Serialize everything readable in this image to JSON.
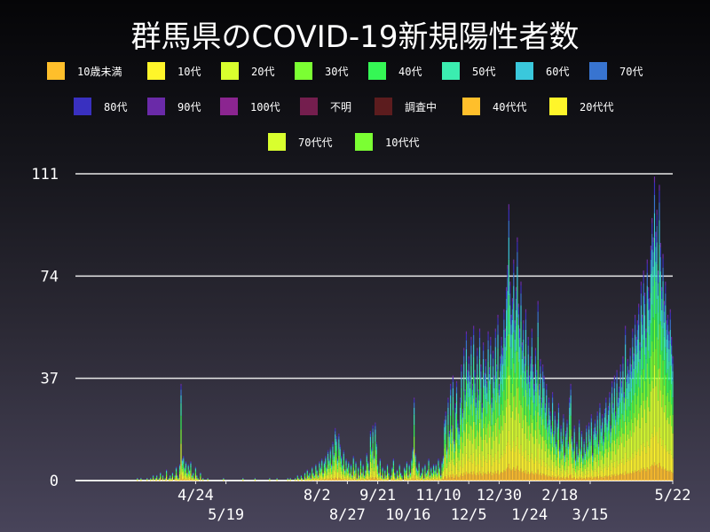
{
  "title": "群馬県のCOVID-19新規陽性者数",
  "legend": [
    {
      "label": "10歳未満",
      "color": "#FFBF2B"
    },
    {
      "label": "10代",
      "color": "#FFF52A"
    },
    {
      "label": "20代",
      "color": "#D9FF2E"
    },
    {
      "label": "30代",
      "color": "#7BFF33"
    },
    {
      "label": "40代",
      "color": "#35F755"
    },
    {
      "label": "50代",
      "color": "#3BEDB0"
    },
    {
      "label": "60代",
      "color": "#3AC8DC"
    },
    {
      "label": "70代",
      "color": "#3874D0"
    },
    {
      "label": "80代",
      "color": "#3930C0"
    },
    {
      "label": "90代",
      "color": "#6A2AA8"
    },
    {
      "label": "100代",
      "color": "#8B2590"
    },
    {
      "label": "不明",
      "color": "#741E4E"
    },
    {
      "label": "調査中",
      "color": "#5C1C1E"
    },
    {
      "label": "40代代",
      "color": "#FFBF2B"
    },
    {
      "label": "20代代",
      "color": "#FFF52A"
    },
    {
      "label": "70代代",
      "color": "#D9FF2E"
    },
    {
      "label": "10代代",
      "color": "#7BFF33"
    }
  ],
  "chart_data": {
    "type": "bar",
    "stacked": true,
    "title": "群馬県のCOVID-19新規陽性者数",
    "xlabel": "",
    "ylabel": "",
    "x_start": "2020-03-07",
    "xlim": [
      "2020-01-16",
      "2021-05-22"
    ],
    "ylim": [
      0,
      111
    ],
    "yticks": [
      0,
      37,
      74,
      111
    ],
    "xticks": [
      "4/24",
      "5/19",
      "8/2",
      "8/27",
      "9/21",
      "10/16",
      "11/10",
      "12/5",
      "12/30",
      "1/24",
      "2/18",
      "3/15",
      "5/22"
    ],
    "xtick_dates": [
      "2020-04-24",
      "2020-05-19",
      "2020-08-02",
      "2020-08-27",
      "2020-09-21",
      "2020-10-16",
      "2020-11-10",
      "2020-12-05",
      "2020-12-30",
      "2021-01-24",
      "2021-02-18",
      "2021-03-15",
      "2021-05-22"
    ],
    "grid": "horizontal",
    "legend_position": "top",
    "daily_totals": [
      1,
      0,
      0,
      1,
      0,
      0,
      0,
      0,
      1,
      0,
      0,
      1,
      0,
      2,
      0,
      1,
      2,
      0,
      1,
      3,
      0,
      2,
      0,
      1,
      4,
      0,
      1,
      2,
      1,
      3,
      0,
      2,
      5,
      2,
      1,
      6,
      35,
      8,
      9,
      5,
      7,
      3,
      6,
      4,
      7,
      2,
      3,
      1,
      5,
      2,
      1,
      0,
      3,
      0,
      1,
      0,
      0,
      0,
      1,
      0,
      0,
      0,
      0,
      0,
      0,
      0,
      0,
      0,
      0,
      0,
      0,
      1,
      0,
      0,
      0,
      0,
      0,
      0,
      0,
      0,
      0,
      0,
      0,
      0,
      0,
      0,
      0,
      1,
      0,
      0,
      0,
      0,
      0,
      0,
      0,
      0,
      0,
      1,
      0,
      0,
      0,
      0,
      0,
      0,
      0,
      0,
      0,
      0,
      0,
      1,
      0,
      0,
      0,
      0,
      0,
      1,
      0,
      0,
      0,
      0,
      0,
      0,
      0,
      0,
      1,
      0,
      1,
      0,
      0,
      0,
      1,
      0,
      2,
      1,
      0,
      2,
      1,
      0,
      3,
      1,
      4,
      2,
      3,
      1,
      5,
      3,
      2,
      6,
      4,
      2,
      7,
      5,
      8,
      3,
      7,
      9,
      5,
      11,
      8,
      12,
      6,
      14,
      10,
      19,
      16,
      8,
      17,
      13,
      9,
      6,
      11,
      4,
      8,
      5,
      7,
      3,
      6,
      2,
      9,
      4,
      7,
      1,
      5,
      2,
      8,
      3,
      6,
      2,
      4,
      10,
      7,
      4,
      18,
      12,
      20,
      9,
      21,
      14,
      6,
      3,
      8,
      2,
      5,
      1,
      4,
      2,
      6,
      3,
      0,
      2,
      5,
      8,
      3,
      1,
      4,
      2,
      6,
      3,
      2,
      0,
      5,
      4,
      7,
      2,
      6,
      3,
      8,
      12,
      30,
      10,
      5,
      4,
      7,
      2,
      3,
      5,
      1,
      6,
      3,
      4,
      8,
      2,
      5,
      3,
      6,
      4,
      6,
      3,
      8,
      5,
      2,
      7,
      9,
      22,
      25,
      12,
      30,
      18,
      35,
      20,
      38,
      15,
      28,
      36,
      22,
      19,
      30,
      42,
      26,
      48,
      33,
      54,
      40,
      45,
      38,
      52,
      35,
      56,
      40,
      30,
      48,
      33,
      55,
      42,
      28,
      50,
      39,
      44,
      36,
      54,
      41,
      52,
      30,
      47,
      38,
      55,
      42,
      60,
      35,
      45,
      52,
      48,
      62,
      55,
      70,
      78,
      100,
      72,
      60,
      66,
      80,
      58,
      70,
      88,
      64,
      55,
      72,
      50,
      58,
      45,
      62,
      40,
      52,
      38,
      45,
      55,
      42,
      35,
      48,
      40,
      65,
      35,
      44,
      30,
      42,
      38,
      28,
      35,
      22,
      30,
      25,
      20,
      32,
      18,
      25,
      14,
      22,
      28,
      12,
      20,
      15,
      24,
      10,
      18,
      22,
      14,
      30,
      35,
      16,
      12,
      20,
      8,
      14,
      10,
      22,
      12,
      18,
      9,
      15,
      11,
      20,
      13,
      21,
      16,
      24,
      10,
      19,
      22,
      18,
      25,
      14,
      28,
      20,
      24,
      16,
      26,
      30,
      22,
      27,
      32,
      20,
      36,
      28,
      38,
      25,
      40,
      30,
      34,
      42,
      36,
      45,
      32,
      56,
      38,
      44,
      40,
      48,
      42,
      55,
      46,
      60,
      52,
      58,
      64,
      50,
      72,
      60,
      76,
      68,
      55,
      80,
      70,
      66,
      85,
      95,
      88,
      110,
      90,
      98,
      76,
      107,
      86,
      70,
      82,
      65,
      72,
      58,
      60,
      54,
      62,
      52,
      45
    ]
  }
}
